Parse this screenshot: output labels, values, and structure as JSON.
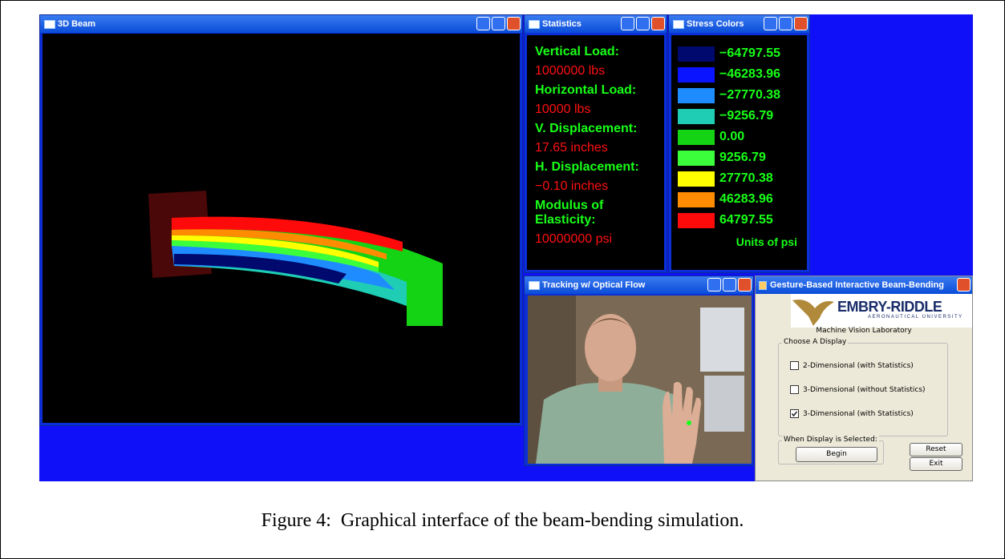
{
  "windows": {
    "beam": {
      "title": "3D Beam"
    },
    "statistics": {
      "title": "Statistics",
      "items": [
        {
          "label": "Vertical Load:",
          "value": "1000000 lbs"
        },
        {
          "label": "Horizontal Load:",
          "value": "10000 lbs"
        },
        {
          "label": "V. Displacement:",
          "value": "17.65 inches"
        },
        {
          "label": "H. Displacement:",
          "value": "−0.10 inches"
        },
        {
          "label": "Modulus of Elasticity:",
          "value": "10000000 psi"
        }
      ]
    },
    "stress": {
      "title": "Stress Colors",
      "entries": [
        {
          "color": "#000a6e",
          "value": "−64797.55"
        },
        {
          "color": "#0a14ff",
          "value": "−46283.96"
        },
        {
          "color": "#1e8cff",
          "value": "−27770.38"
        },
        {
          "color": "#1ecdb4",
          "value": "−9256.79"
        },
        {
          "color": "#14d214",
          "value": "0.00"
        },
        {
          "color": "#3cff3c",
          "value": "9256.79"
        },
        {
          "color": "#ffff00",
          "value": "27770.38"
        },
        {
          "color": "#ff8c00",
          "value": "46283.96"
        },
        {
          "color": "#ff0a0a",
          "value": "64797.55"
        }
      ],
      "units": "Units of psi"
    },
    "tracking": {
      "title": "Tracking w/ Optical Flow"
    },
    "control": {
      "title": "Gesture-Based Interactive Beam-Bending",
      "logo": "EMBRY-RIDDLE",
      "logo_sub": "AERONAUTICAL UNIVERSITY",
      "lab": "Machine Vision Laboratory",
      "group": "Choose A Display",
      "options": [
        {
          "label": "2-Dimensional (with Statistics)",
          "checked": false
        },
        {
          "label": "3-Dimensional (without Statistics)",
          "checked": false
        },
        {
          "label": "3-Dimensional (with Statistics)",
          "checked": true
        }
      ],
      "group2": "When Display is Selected:",
      "buttons": {
        "begin": "Begin",
        "reset": "Reset",
        "exit": "Exit"
      }
    }
  },
  "caption": "Figure 4:  Graphical interface of the beam-bending simulation."
}
